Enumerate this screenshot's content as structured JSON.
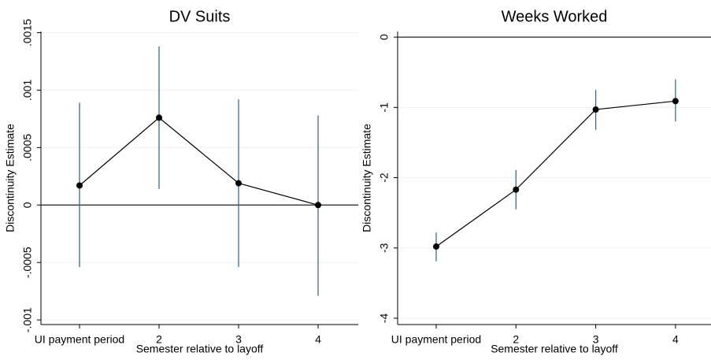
{
  "chart_data": [
    {
      "type": "line",
      "title": "DV Suits",
      "x_label": "Semester relative to layoff",
      "y_label": "Discontinuity Estimate",
      "categories": [
        "UI payment period",
        "2",
        "3",
        "4"
      ],
      "values": [
        0.00017,
        0.00076,
        0.00019,
        0.0
      ],
      "ci_lower": [
        -0.00054,
        0.00014,
        -0.00054,
        -0.00079
      ],
      "ci_upper": [
        0.00089,
        0.00138,
        0.00092,
        0.00078
      ],
      "ylim": [
        -0.00104,
        0.00151
      ],
      "yticks": [
        {
          "value": -0.001,
          "label": "-.001"
        },
        {
          "value": -0.0005,
          "label": "-.0005"
        },
        0,
        {
          "value": 0.0005,
          "label": ".0005"
        },
        {
          "value": 0.001,
          "label": ".001"
        },
        {
          "value": 0.0015,
          "label": ".0015"
        }
      ],
      "hline": 0,
      "grid": true,
      "color": "#000000",
      "error_color": "#3e6a8e"
    },
    {
      "type": "line",
      "title": "Weeks Worked",
      "x_label": "Semester relative to layoff",
      "y_label": "Discontinuity Estimate",
      "categories": [
        "UI payment period",
        "2",
        "3",
        "4"
      ],
      "values": [
        -2.98,
        -2.17,
        -1.03,
        -0.91
      ],
      "ci_lower": [
        -3.19,
        -2.45,
        -1.32,
        -1.2
      ],
      "ci_upper": [
        -2.78,
        -1.89,
        -0.75,
        -0.6
      ],
      "ylim": [
        -4.09,
        0.08
      ],
      "yticks": [
        -4,
        -3,
        -2,
        -1,
        0
      ],
      "hline": 0,
      "grid": true,
      "color": "#000000",
      "error_color": "#3e6a8e"
    }
  ]
}
